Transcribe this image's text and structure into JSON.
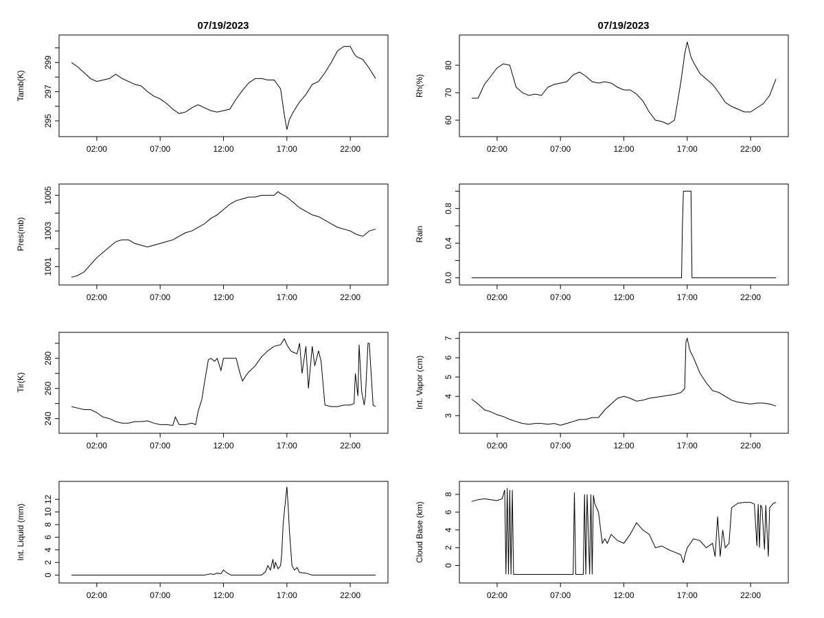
{
  "chart_data": [
    {
      "type": "line",
      "title": "07/19/2023",
      "ylabel": "Tamb(K)",
      "xlim": [
        0,
        24
      ],
      "ylim": [
        294.2,
        300.6
      ],
      "xticks": [
        2,
        7,
        12,
        17,
        22
      ],
      "xtick_labels": [
        "02:00",
        "07:00",
        "12:00",
        "17:00",
        "22:00"
      ],
      "yticks": [
        295,
        296,
        297,
        298,
        299,
        300
      ],
      "ytick_labels": [
        "295",
        "",
        "297",
        "",
        "299",
        ""
      ],
      "x": [
        0,
        0.5,
        1,
        1.5,
        2,
        2.5,
        3,
        3.5,
        4,
        4.5,
        5,
        5.5,
        6,
        6.5,
        7,
        7.5,
        8,
        8.5,
        9,
        9.5,
        10,
        10.5,
        11,
        11.5,
        12,
        12.5,
        13,
        13.5,
        14,
        14.5,
        15,
        15.5,
        16,
        16.5,
        16.8,
        17,
        17.2,
        17.5,
        18,
        18.5,
        19,
        19.5,
        20,
        20.5,
        21,
        21.5,
        22,
        22.3,
        22.5,
        23,
        23.5,
        24
      ],
      "y": [
        299.0,
        298.7,
        298.3,
        297.9,
        297.7,
        297.8,
        297.9,
        298.2,
        297.9,
        297.7,
        297.5,
        297.4,
        297.0,
        296.7,
        296.5,
        296.2,
        295.8,
        295.5,
        295.6,
        295.9,
        296.1,
        295.9,
        295.7,
        295.6,
        295.7,
        295.8,
        296.5,
        297.1,
        297.6,
        297.9,
        297.9,
        297.8,
        297.8,
        297.2,
        295.4,
        294.4,
        295.1,
        295.6,
        296.3,
        296.8,
        297.5,
        297.7,
        298.3,
        299.0,
        299.8,
        300.1,
        300.1,
        299.6,
        299.4,
        299.2,
        298.6,
        297.9
      ]
    },
    {
      "type": "line",
      "title": "07/19/2023",
      "ylabel": "Rh(%)",
      "xlim": [
        0,
        24
      ],
      "ylim": [
        55.5,
        89.5
      ],
      "xticks": [
        2,
        7,
        12,
        17,
        22
      ],
      "xtick_labels": [
        "02:00",
        "07:00",
        "12:00",
        "17:00",
        "22:00"
      ],
      "yticks": [
        60,
        70,
        80
      ],
      "ytick_labels": [
        "60",
        "70",
        "80"
      ],
      "x": [
        0,
        0.5,
        1,
        1.5,
        2,
        2.5,
        3,
        3.5,
        4,
        4.5,
        5,
        5.5,
        6,
        6.5,
        7,
        7.5,
        8,
        8.5,
        9,
        9.5,
        10,
        10.5,
        11,
        11.5,
        12,
        12.5,
        13,
        13.5,
        14,
        14.5,
        15,
        15.5,
        16,
        16.5,
        16.8,
        17,
        17.3,
        17.5,
        18,
        18.5,
        19,
        19.5,
        20,
        20.5,
        21,
        21.5,
        22,
        22.5,
        23,
        23.5,
        24
      ],
      "y": [
        68,
        68,
        73,
        76,
        79,
        80.5,
        80,
        72,
        70,
        69,
        69.5,
        69,
        72,
        73,
        73.5,
        74,
        76.5,
        77.5,
        76,
        74,
        73.5,
        74,
        73.5,
        72,
        71,
        71,
        69.5,
        67,
        63,
        60,
        59.5,
        58.5,
        60,
        74,
        84,
        88.5,
        83,
        81,
        77,
        75,
        73,
        70,
        66.5,
        65,
        64,
        63,
        63,
        64.5,
        66,
        69,
        75
      ]
    },
    {
      "type": "line",
      "title": "",
      "ylabel": "Pres(mb)",
      "xlim": [
        0,
        24
      ],
      "ylim": [
        1000.2,
        1005.4
      ],
      "xticks": [
        2,
        7,
        12,
        17,
        22
      ],
      "xtick_labels": [
        "02:00",
        "07:00",
        "12:00",
        "17:00",
        "22:00"
      ],
      "yticks": [
        1001,
        1002,
        1003,
        1004,
        1005
      ],
      "ytick_labels": [
        "1001",
        "",
        "1003",
        "",
        "1005"
      ],
      "x": [
        0,
        0.5,
        1,
        1.5,
        2,
        2.5,
        3,
        3.5,
        4,
        4.5,
        5,
        5.5,
        6,
        6.5,
        7,
        7.5,
        8,
        8.5,
        9,
        9.5,
        10,
        10.5,
        11,
        11.5,
        12,
        12.5,
        13,
        13.5,
        14,
        14.5,
        15,
        15.5,
        16,
        16.3,
        16.5,
        17,
        17.5,
        18,
        18.5,
        19,
        19.5,
        20,
        20.5,
        21,
        21.5,
        22,
        22.5,
        23,
        23.5,
        24
      ],
      "y": [
        1000.4,
        1000.5,
        1000.7,
        1001.1,
        1001.5,
        1001.8,
        1002.1,
        1002.4,
        1002.5,
        1002.5,
        1002.3,
        1002.2,
        1002.1,
        1002.2,
        1002.3,
        1002.4,
        1002.5,
        1002.7,
        1002.9,
        1003.0,
        1003.2,
        1003.4,
        1003.7,
        1003.9,
        1004.2,
        1004.5,
        1004.7,
        1004.8,
        1004.9,
        1004.9,
        1005.0,
        1005.0,
        1005.0,
        1005.2,
        1005.1,
        1004.9,
        1004.6,
        1004.3,
        1004.1,
        1003.9,
        1003.8,
        1003.6,
        1003.4,
        1003.2,
        1003.1,
        1003.0,
        1002.8,
        1002.7,
        1003.0,
        1003.1
      ]
    },
    {
      "type": "line",
      "title": "",
      "ylabel": "Rain",
      "xlim": [
        0,
        24
      ],
      "ylim": [
        -0.035,
        1.035
      ],
      "xticks": [
        2,
        7,
        12,
        17,
        22
      ],
      "xtick_labels": [
        "02:00",
        "07:00",
        "12:00",
        "17:00",
        "22:00"
      ],
      "yticks": [
        0,
        0.2,
        0.4,
        0.6,
        0.8,
        1.0
      ],
      "ytick_labels": [
        "0.0",
        "",
        "0.4",
        "",
        "0.8",
        ""
      ],
      "x": [
        0,
        16.55,
        16.62,
        16.7,
        17.3,
        17.38,
        24
      ],
      "y": [
        0,
        0,
        0.6,
        1,
        1,
        0,
        0
      ]
    },
    {
      "type": "line",
      "title": "",
      "ylabel": "Tir(K)",
      "xlim": [
        0,
        24
      ],
      "ylim": [
        233,
        294.5
      ],
      "xticks": [
        2,
        7,
        12,
        17,
        22
      ],
      "xtick_labels": [
        "02:00",
        "07:00",
        "12:00",
        "17:00",
        "22:00"
      ],
      "yticks": [
        240,
        250,
        260,
        270,
        280,
        290
      ],
      "ytick_labels": [
        "240",
        "",
        "260",
        "",
        "280",
        ""
      ],
      "x": [
        0,
        0.5,
        1,
        1.5,
        2,
        2.5,
        3,
        3.5,
        4,
        4.5,
        5,
        5.5,
        6,
        6.5,
        7,
        7.5,
        8,
        8.2,
        8.5,
        9,
        9.5,
        9.8,
        10,
        10.3,
        10.5,
        10.8,
        11,
        11.3,
        11.5,
        11.8,
        12,
        12.5,
        13,
        13.3,
        13.5,
        13.8,
        14,
        14.5,
        15,
        15.5,
        16,
        16.5,
        16.8,
        17,
        17.3,
        17.5,
        17.8,
        18,
        18.2,
        18.5,
        18.7,
        19,
        19.2,
        19.5,
        19.7,
        20,
        20.5,
        21,
        21.5,
        22,
        22.3,
        22.4,
        22.6,
        22.7,
        22.9,
        23.1,
        23.2,
        23.4,
        23.5,
        23.8,
        24
      ],
      "y": [
        248,
        247,
        246,
        246,
        244,
        241,
        240,
        238,
        237,
        237,
        238,
        238,
        238.5,
        237,
        236,
        236,
        235.5,
        241,
        236,
        236,
        237,
        236,
        245,
        253,
        264,
        279,
        280,
        278,
        280,
        272,
        280,
        280,
        280,
        270,
        265,
        269,
        271,
        275,
        281,
        285,
        288,
        289,
        293,
        289,
        285,
        284,
        283,
        290,
        270,
        288,
        260,
        288,
        275,
        285,
        278,
        249,
        248,
        248,
        249,
        249,
        250,
        270,
        255,
        289,
        258,
        249,
        255,
        290,
        290,
        249,
        248
      ]
    },
    {
      "type": "line",
      "title": "",
      "ylabel": "Int. Vapor (cm)",
      "xlim": [
        0,
        24
      ],
      "ylim": [
        2.3,
        7.1
      ],
      "xticks": [
        2,
        7,
        12,
        17,
        22
      ],
      "xtick_labels": [
        "02:00",
        "07:00",
        "12:00",
        "17:00",
        "22:00"
      ],
      "yticks": [
        3,
        4,
        5,
        6,
        7
      ],
      "ytick_labels": [
        "3",
        "4",
        "5",
        "6",
        "7"
      ],
      "x": [
        0,
        0.5,
        1,
        1.5,
        2,
        2.5,
        3,
        3.5,
        4,
        4.5,
        5,
        5.5,
        6,
        6.5,
        7,
        7.5,
        8,
        8.5,
        9,
        9.5,
        10,
        10.5,
        11,
        11.5,
        12,
        12.5,
        13,
        13.5,
        14,
        14.5,
        15,
        15.5,
        16,
        16.5,
        16.8,
        16.9,
        17,
        17.2,
        17.5,
        18,
        18.5,
        19,
        19.5,
        20,
        20.5,
        21,
        21.5,
        22,
        22.5,
        23,
        23.5,
        24
      ],
      "y": [
        3.85,
        3.6,
        3.3,
        3.2,
        3.05,
        2.95,
        2.8,
        2.7,
        2.6,
        2.55,
        2.6,
        2.6,
        2.55,
        2.6,
        2.5,
        2.6,
        2.7,
        2.8,
        2.8,
        2.9,
        2.9,
        3.3,
        3.6,
        3.9,
        4.0,
        3.9,
        3.75,
        3.8,
        3.9,
        3.95,
        4.0,
        4.05,
        4.1,
        4.2,
        4.4,
        6.8,
        7.0,
        6.4,
        6.0,
        5.2,
        4.7,
        4.3,
        4.2,
        4.0,
        3.8,
        3.7,
        3.65,
        3.6,
        3.65,
        3.65,
        3.6,
        3.5
      ]
    },
    {
      "type": "line",
      "title": "",
      "ylabel": "Int. Liquid (mm)",
      "xlim": [
        0,
        24
      ],
      "ylim": [
        -0.6,
        14.2
      ],
      "xticks": [
        2,
        7,
        12,
        17,
        22
      ],
      "xtick_labels": [
        "02:00",
        "07:00",
        "12:00",
        "17:00",
        "22:00"
      ],
      "yticks": [
        0,
        2,
        4,
        6,
        8,
        10,
        12
      ],
      "ytick_labels": [
        "0",
        "2",
        "4",
        "6",
        "8",
        "10",
        "12"
      ],
      "x": [
        0,
        10.5,
        11,
        11.2,
        11.5,
        11.8,
        12,
        12.3,
        12.6,
        13,
        14,
        15,
        15.3,
        15.5,
        15.7,
        15.9,
        16,
        16.1,
        16.3,
        16.5,
        16.6,
        16.7,
        16.8,
        16.9,
        17,
        17.1,
        17.2,
        17.4,
        17.6,
        17.8,
        18,
        18.5,
        19,
        24
      ],
      "y": [
        0,
        0,
        0.2,
        0.1,
        0.3,
        0.2,
        0.8,
        0.3,
        0,
        0,
        0,
        0,
        0.5,
        1.5,
        0.8,
        2.5,
        1,
        2,
        1,
        1.5,
        3.5,
        8,
        10,
        12,
        14,
        11,
        7,
        1.5,
        0.8,
        1.2,
        0.4,
        0.3,
        0,
        0
      ]
    },
    {
      "type": "line",
      "title": "",
      "ylabel": "Cloud Base (km)",
      "xlim": [
        0,
        24
      ],
      "ylim": [
        -1.5,
        9.0
      ],
      "xticks": [
        2,
        7,
        12,
        17,
        22
      ],
      "xtick_labels": [
        "02:00",
        "07:00",
        "12:00",
        "17:00",
        "22:00"
      ],
      "yticks": [
        0,
        2,
        4,
        6,
        8
      ],
      "ytick_labels": [
        "0",
        "2",
        "4",
        "6",
        "8"
      ],
      "x": [
        0,
        0.5,
        1,
        1.5,
        2,
        2.4,
        2.6,
        2.7,
        2.8,
        2.9,
        3.0,
        3.1,
        3.2,
        3.3,
        8.0,
        8.1,
        8.2,
        8.3,
        8.8,
        8.9,
        9.0,
        9.1,
        9.3,
        9.4,
        9.5,
        9.6,
        9.7,
        10,
        10.3,
        10.5,
        10.7,
        11,
        11.5,
        12,
        12.5,
        13,
        13.5,
        14,
        14.5,
        15,
        15.5,
        16,
        16.5,
        16.7,
        16.8,
        17,
        17.5,
        18,
        18.5,
        19,
        19.2,
        19.4,
        19.6,
        19.8,
        20,
        20.3,
        20.5,
        21,
        21.5,
        22,
        22.3,
        22.5,
        22.6,
        22.7,
        22.8,
        22.9,
        23.1,
        23.2,
        23.4,
        23.5,
        23.8,
        24
      ],
      "y": [
        7.2,
        7.4,
        7.5,
        7.4,
        7.3,
        7.5,
        8.5,
        -1,
        8.7,
        -1,
        8.5,
        -1,
        8.5,
        -1,
        -1,
        8.2,
        -1,
        -1,
        -1,
        8,
        -1,
        8,
        -1,
        8,
        -1,
        7.9,
        7.0,
        6.0,
        2.5,
        3.0,
        2.5,
        3.5,
        2.8,
        2.5,
        3.5,
        4.8,
        4.0,
        3.5,
        2.0,
        2.2,
        1.8,
        1.5,
        1.2,
        0.3,
        1.0,
        2.0,
        3.0,
        2.8,
        2.0,
        2.5,
        1.0,
        5.5,
        1.0,
        4.0,
        2.0,
        2.5,
        6.5,
        7.0,
        7.1,
        7.1,
        6.9,
        2.2,
        6.9,
        2.0,
        6.8,
        6.5,
        1.8,
        6.8,
        1.0,
        6.5,
        7.0,
        7.1
      ]
    }
  ]
}
